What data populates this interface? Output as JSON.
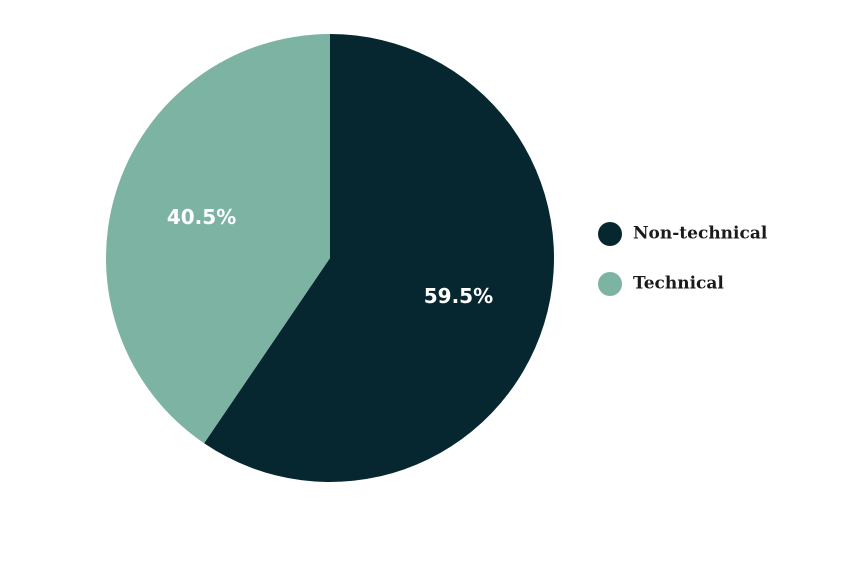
{
  "chart_data": {
    "type": "pie",
    "title": "",
    "slices": [
      {
        "label": "Non-technical",
        "value": 59.5,
        "display": "59.5%",
        "color": "#062630"
      },
      {
        "label": "Technical",
        "value": 40.5,
        "display": "40.5%",
        "color": "#7db3a3"
      }
    ],
    "start_angle": "top",
    "direction": "clockwise",
    "legend_position": "right"
  }
}
